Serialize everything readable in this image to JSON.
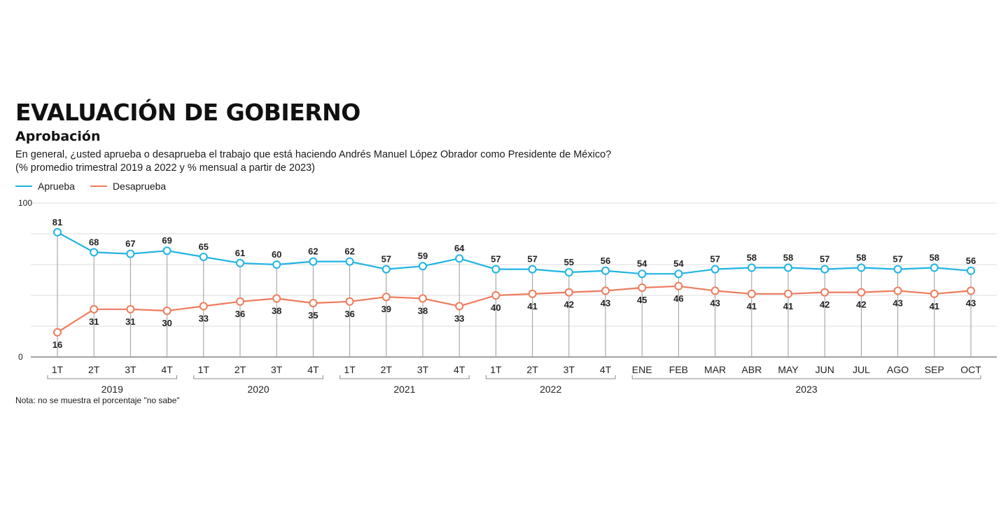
{
  "header": {
    "title": "EVALUACIÓN DE GOBIERNO",
    "subtitle": "Aprobación",
    "question": "En general, ¿usted aprueba o desaprueba el trabajo que está haciendo Andrés Manuel López Obrador como Presidente de México?",
    "period": "(% promedio trimestral 2019 a 2022 y % mensual a partir de 2023)"
  },
  "note": "Nota: no se muestra el porcentaje \"no sabe\"",
  "colors": {
    "aprueba": "#1fb4e3",
    "desaprueba": "#ee7b5c",
    "grid": "#dcdcdc",
    "drop_line": "#9a9a9a"
  },
  "chart_data": {
    "type": "line",
    "title": "EVALUACIÓN DE GOBIERNO",
    "subtitle": "Aprobación",
    "xlabel": "",
    "ylabel": "",
    "ylim": [
      0,
      100
    ],
    "y_ticks_labeled": [
      0,
      100
    ],
    "grid": true,
    "legend_position": "top-left",
    "categories": [
      "1T",
      "2T",
      "3T",
      "4T",
      "1T",
      "2T",
      "3T",
      "4T",
      "1T",
      "2T",
      "3T",
      "4T",
      "1T",
      "2T",
      "3T",
      "4T",
      "ENE",
      "FEB",
      "MAR",
      "ABR",
      "MAY",
      "JUN",
      "JUL",
      "AGO",
      "SEP",
      "OCT"
    ],
    "groups": [
      {
        "label": "2019",
        "start": 0,
        "end": 3
      },
      {
        "label": "2020",
        "start": 4,
        "end": 7
      },
      {
        "label": "2021",
        "start": 8,
        "end": 11
      },
      {
        "label": "2022",
        "start": 12,
        "end": 15
      },
      {
        "label": "2023",
        "start": 16,
        "end": 25
      }
    ],
    "series": [
      {
        "name": "Aprueba",
        "color": "#1fb4e3",
        "values": [
          81,
          68,
          67,
          69,
          65,
          61,
          60,
          62,
          62,
          57,
          59,
          64,
          57,
          57,
          55,
          56,
          54,
          54,
          57,
          58,
          58,
          57,
          58,
          57,
          58,
          56
        ]
      },
      {
        "name": "Desaprueba",
        "color": "#ee7b5c",
        "values": [
          16,
          31,
          31,
          30,
          33,
          36,
          38,
          35,
          36,
          39,
          38,
          33,
          40,
          41,
          42,
          43,
          45,
          46,
          43,
          41,
          41,
          42,
          42,
          43,
          41,
          43
        ]
      }
    ]
  }
}
